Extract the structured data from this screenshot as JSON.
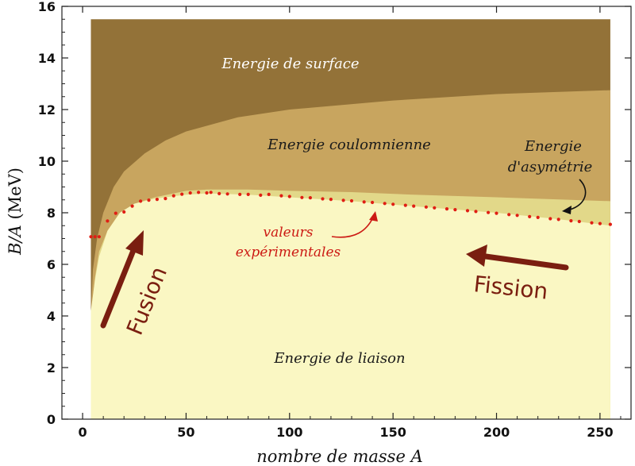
{
  "chart_data": {
    "type": "area",
    "xlabel": "nombre de masse A",
    "ylabel_html": "B/A (MeV)",
    "ylabel_parts": [
      "B/",
      "A",
      " (MeV)"
    ],
    "xlim": [
      -10,
      265
    ],
    "ylim": [
      0,
      16
    ],
    "xticks": [
      0,
      50,
      100,
      150,
      200,
      250
    ],
    "yticks": [
      0,
      2,
      4,
      6,
      8,
      10,
      12,
      14,
      16
    ],
    "regions": [
      {
        "name": "Energie de surface",
        "color": "#937238"
      },
      {
        "name": "Energie coulomnienne",
        "color": "#c8a55f"
      },
      {
        "name": "Energie d'asymétrie",
        "color": "#e2d889"
      },
      {
        "name": "Energie de liaison",
        "color": "#faf7c3"
      }
    ],
    "volume_level": 15.5,
    "surface_boundary": [
      [
        4,
        4.0
      ],
      [
        5,
        5.8
      ],
      [
        7,
        7.0
      ],
      [
        10,
        8.0
      ],
      [
        15,
        9.0
      ],
      [
        20,
        9.6
      ],
      [
        30,
        10.3
      ],
      [
        40,
        10.8
      ],
      [
        50,
        11.15
      ],
      [
        75,
        11.7
      ],
      [
        100,
        12.0
      ],
      [
        150,
        12.35
      ],
      [
        200,
        12.6
      ],
      [
        255,
        12.75
      ]
    ],
    "coulomb_boundary": [
      [
        4,
        4.0
      ],
      [
        6,
        5.5
      ],
      [
        8,
        6.5
      ],
      [
        12,
        7.3
      ],
      [
        18,
        8.0
      ],
      [
        25,
        8.35
      ],
      [
        35,
        8.6
      ],
      [
        50,
        8.85
      ],
      [
        60,
        8.9
      ],
      [
        80,
        8.9
      ],
      [
        100,
        8.85
      ],
      [
        130,
        8.8
      ],
      [
        160,
        8.7
      ],
      [
        200,
        8.6
      ],
      [
        255,
        8.45
      ]
    ],
    "binding_boundary": [
      [
        4,
        4.2
      ],
      [
        6,
        5.4
      ],
      [
        8,
        6.3
      ],
      [
        12,
        7.3
      ],
      [
        18,
        8.0
      ],
      [
        25,
        8.35
      ],
      [
        35,
        8.55
      ],
      [
        50,
        8.7
      ],
      [
        60,
        8.75
      ],
      [
        80,
        8.7
      ],
      [
        100,
        8.6
      ],
      [
        130,
        8.45
      ],
      [
        160,
        8.25
      ],
      [
        200,
        8.0
      ],
      [
        230,
        7.75
      ],
      [
        255,
        7.5
      ]
    ],
    "experimental": {
      "name": "valeurs expérimentales",
      "color": "#e01e14",
      "points": [
        [
          4,
          7.07
        ],
        [
          6,
          7.07
        ],
        [
          8,
          7.07
        ],
        [
          12,
          7.68
        ],
        [
          16,
          7.98
        ],
        [
          20,
          8.03
        ],
        [
          24,
          8.26
        ],
        [
          28,
          8.45
        ],
        [
          32,
          8.49
        ],
        [
          36,
          8.52
        ],
        [
          40,
          8.55
        ],
        [
          44,
          8.66
        ],
        [
          48,
          8.72
        ],
        [
          52,
          8.77
        ],
        [
          56,
          8.79
        ],
        [
          60,
          8.77
        ],
        [
          62,
          8.79
        ],
        [
          66,
          8.74
        ],
        [
          70,
          8.73
        ],
        [
          76,
          8.71
        ],
        [
          80,
          8.71
        ],
        [
          86,
          8.68
        ],
        [
          90,
          8.71
        ],
        [
          96,
          8.66
        ],
        [
          100,
          8.63
        ],
        [
          106,
          8.59
        ],
        [
          110,
          8.58
        ],
        [
          116,
          8.54
        ],
        [
          120,
          8.52
        ],
        [
          126,
          8.48
        ],
        [
          130,
          8.46
        ],
        [
          136,
          8.42
        ],
        [
          140,
          8.4
        ],
        [
          146,
          8.36
        ],
        [
          150,
          8.33
        ],
        [
          156,
          8.29
        ],
        [
          160,
          8.26
        ],
        [
          166,
          8.22
        ],
        [
          170,
          8.19
        ],
        [
          176,
          8.15
        ],
        [
          180,
          8.12
        ],
        [
          186,
          8.08
        ],
        [
          190,
          8.05
        ],
        [
          196,
          8.01
        ],
        [
          200,
          7.98
        ],
        [
          206,
          7.93
        ],
        [
          210,
          7.9
        ],
        [
          216,
          7.85
        ],
        [
          220,
          7.82
        ],
        [
          226,
          7.77
        ],
        [
          230,
          7.74
        ],
        [
          236,
          7.69
        ],
        [
          240,
          7.66
        ],
        [
          246,
          7.61
        ],
        [
          250,
          7.58
        ],
        [
          255,
          7.55
        ]
      ]
    },
    "annotations": {
      "surface": "Energie de surface",
      "coulomb": "Energie coulomnienne",
      "asym_1": "Energie",
      "asym_2": "d'asymétrie",
      "liaison": "Energie de liaison",
      "exp_1": "valeurs",
      "exp_2": "expérimentales",
      "fusion": "Fusion",
      "fission": "Fission"
    }
  }
}
